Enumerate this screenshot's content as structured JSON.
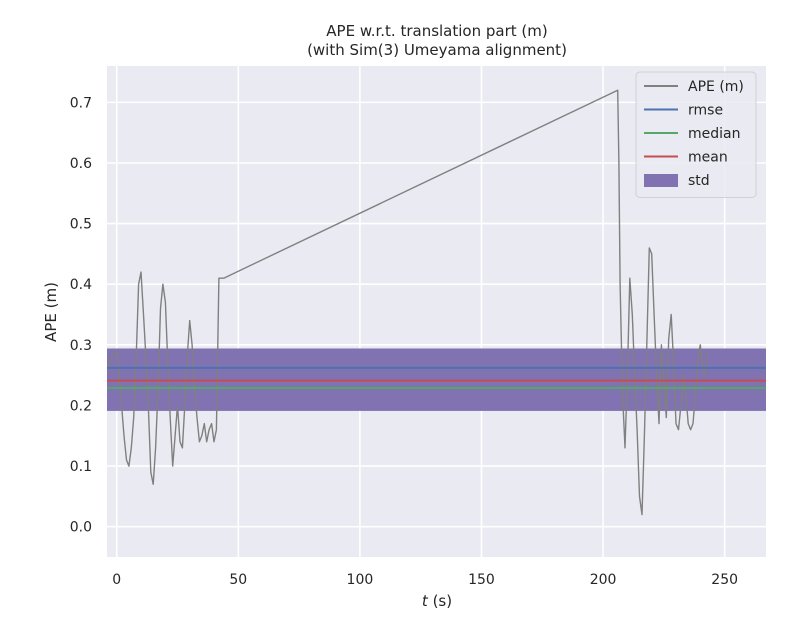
{
  "chart_data": {
    "type": "line",
    "title": "APE w.r.t. translation part (m)",
    "subtitle": "(with Sim(3) Umeyama alignment)",
    "xlabel_italic": "t",
    "xlabel_rest": " (s)",
    "ylabel": "APE (m)",
    "xlim": [
      -4,
      267
    ],
    "ylim": [
      -0.05,
      0.76
    ],
    "xticks": [
      0,
      50,
      100,
      150,
      200,
      250
    ],
    "xtick_labels": [
      "0",
      "50",
      "100",
      "150",
      "200",
      "250"
    ],
    "yticks": [
      0.0,
      0.1,
      0.2,
      0.3,
      0.4,
      0.5,
      0.6,
      0.7
    ],
    "ytick_labels": [
      "0.0",
      "0.1",
      "0.2",
      "0.3",
      "0.4",
      "0.5",
      "0.6",
      "0.7"
    ],
    "grid": true,
    "legend_position": "top-right",
    "legend": [
      {
        "label": "APE (m)",
        "kind": "line",
        "color": "#808080"
      },
      {
        "label": "rmse",
        "kind": "line",
        "color": "#4c72b0"
      },
      {
        "label": "median",
        "kind": "line",
        "color": "#55a868"
      },
      {
        "label": "mean",
        "kind": "line",
        "color": "#c44e52"
      },
      {
        "label": "std",
        "kind": "patch",
        "color": "#8172b2"
      }
    ],
    "stats": {
      "rmse": 0.262,
      "median": 0.229,
      "mean": 0.241,
      "std_band": [
        0.191,
        0.294
      ]
    },
    "series": [
      {
        "name": "APE (m)",
        "color": "#808080",
        "x": [
          -4,
          -2,
          0,
          1,
          2,
          3,
          4,
          5,
          6,
          7,
          8,
          9,
          10,
          11,
          12,
          13,
          14,
          15,
          16,
          17,
          18,
          19,
          20,
          21,
          22,
          23,
          24,
          25,
          26,
          27,
          28,
          29,
          30,
          31,
          32,
          33,
          34,
          35,
          36,
          37,
          38,
          39,
          40,
          41,
          42,
          43,
          44,
          206,
          206.5,
          207,
          208,
          209,
          210,
          211,
          212,
          213,
          214,
          215,
          216,
          217,
          218,
          219,
          220,
          221,
          222,
          223,
          224,
          225,
          226,
          227,
          228,
          229,
          230,
          231,
          232,
          233,
          234,
          235,
          236,
          237,
          238,
          239,
          240,
          241,
          242,
          243
        ],
        "y": [
          0.26,
          0.28,
          0.29,
          0.25,
          0.2,
          0.15,
          0.11,
          0.1,
          0.13,
          0.18,
          0.28,
          0.4,
          0.42,
          0.35,
          0.28,
          0.2,
          0.09,
          0.07,
          0.13,
          0.23,
          0.36,
          0.4,
          0.37,
          0.27,
          0.18,
          0.1,
          0.15,
          0.2,
          0.14,
          0.13,
          0.2,
          0.28,
          0.34,
          0.3,
          0.23,
          0.18,
          0.14,
          0.15,
          0.17,
          0.14,
          0.16,
          0.17,
          0.14,
          0.16,
          0.41,
          0.41,
          0.41,
          0.72,
          0.6,
          0.4,
          0.22,
          0.13,
          0.25,
          0.41,
          0.35,
          0.25,
          0.16,
          0.05,
          0.02,
          0.15,
          0.3,
          0.46,
          0.45,
          0.35,
          0.25,
          0.17,
          0.3,
          0.24,
          0.18,
          0.31,
          0.35,
          0.27,
          0.17,
          0.16,
          0.2,
          0.25,
          0.22,
          0.17,
          0.16,
          0.17,
          0.22,
          0.28,
          0.3,
          0.26,
          0.25,
          0.29
        ]
      }
    ]
  }
}
